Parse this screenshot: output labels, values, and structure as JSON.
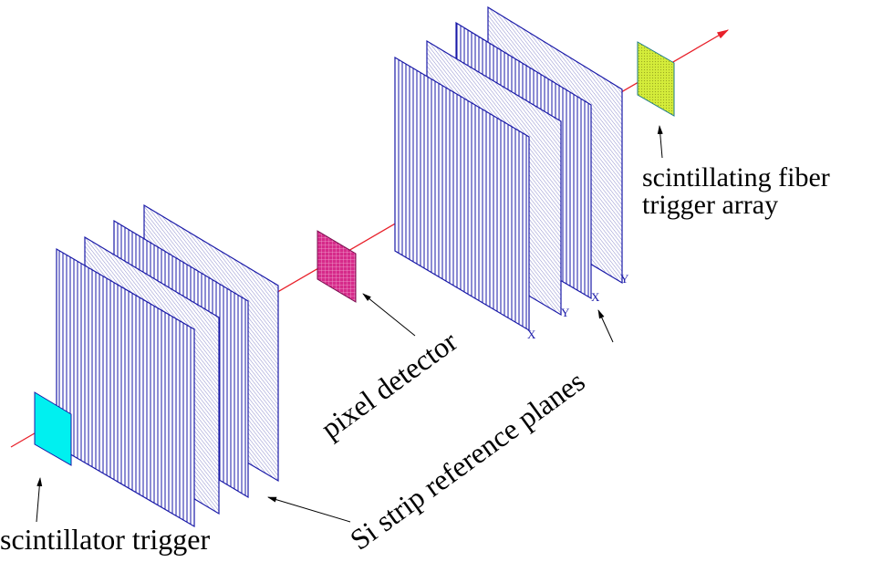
{
  "labels": {
    "scintillator_trigger": "scintillator trigger",
    "si_strip": "Si strip reference planes",
    "pixel_detector": "pixel detector",
    "scint_fiber_line1": "scintillating fiber",
    "scint_fiber_line2": "trigger array"
  },
  "plane_tags": {
    "x1": "X",
    "y1": "Y",
    "x2": "X",
    "y2": "Y"
  },
  "colors": {
    "beam": "#e8202a",
    "strip_plane": "#1a1aa8",
    "scintillator": "#00f0f0",
    "pixel": "#d62a8a",
    "fiber": "#d4ec3a",
    "text": "#000000"
  }
}
